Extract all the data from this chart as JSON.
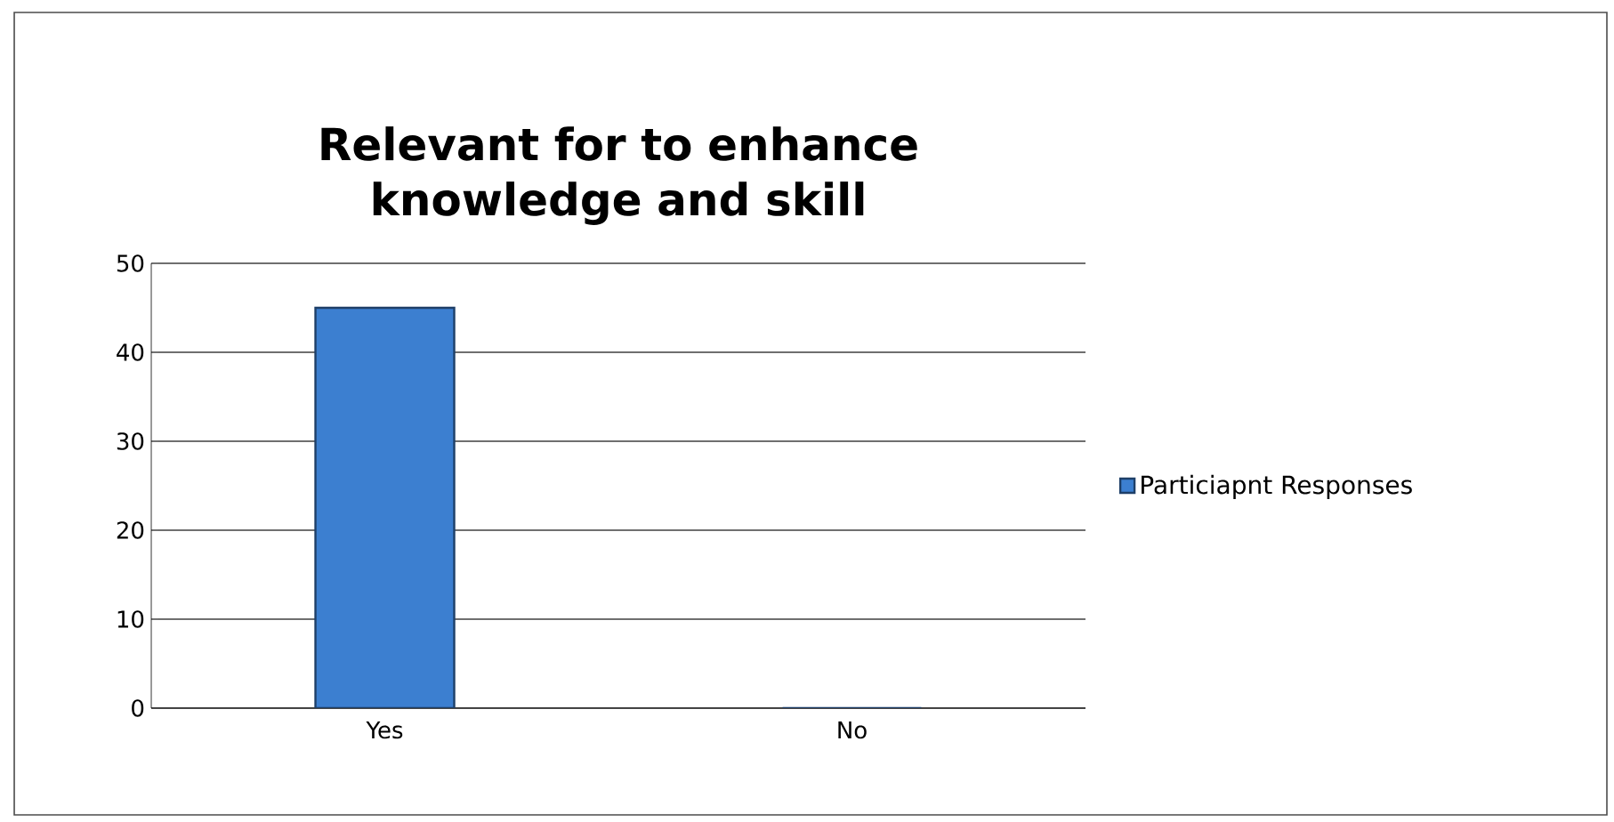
{
  "chart_data": {
    "type": "bar",
    "title": "Relevant  for to enhance knowledge and skill",
    "categories": [
      "Yes",
      "No"
    ],
    "series": [
      {
        "name": "Particiapnt Responses",
        "color": "#3c7fd0",
        "values": [
          45,
          0
        ]
      }
    ],
    "ylim": [
      0,
      50
    ],
    "yticks": [
      0,
      10,
      20,
      30,
      40,
      50
    ],
    "grid": "y",
    "legend": "right"
  }
}
